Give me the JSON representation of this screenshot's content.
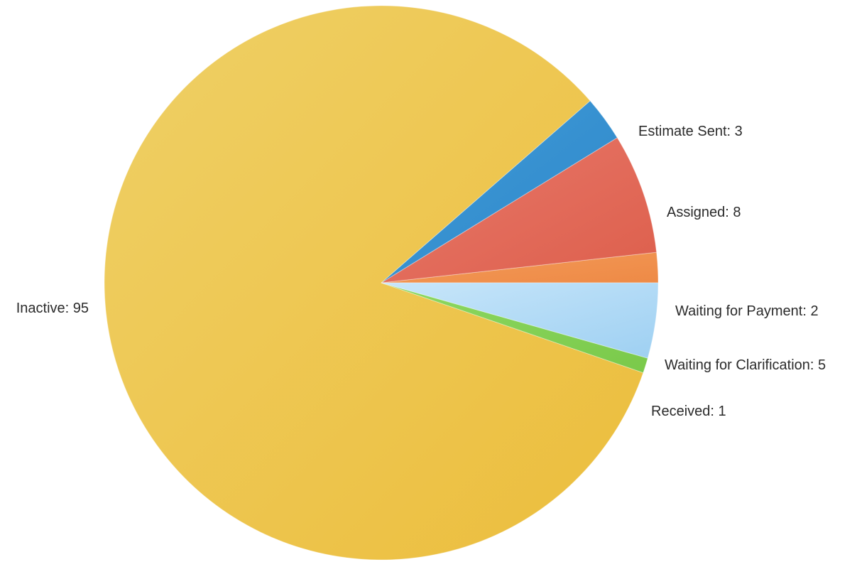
{
  "chart_data": {
    "type": "pie",
    "title": "",
    "legend": "none",
    "slices": [
      {
        "label": "Waiting for Payment",
        "value": 2,
        "text": "Waiting for Payment: 2",
        "color": "#EE8A46",
        "color_light": "#F39A58"
      },
      {
        "label": "Assigned",
        "value": 8,
        "text": "Assigned: 8",
        "color": "#DD5F4C",
        "color_light": "#E8786A"
      },
      {
        "label": "Estimate Sent",
        "value": 3,
        "text": "Estimate Sent: 3",
        "color": "#2F87C8",
        "color_light": "#3F9BD9"
      },
      {
        "label": "Inactive",
        "value": 95,
        "text": "Inactive: 95",
        "color": "#ECBD3C",
        "color_light": "#EFD066"
      },
      {
        "label": "Received",
        "value": 1,
        "text": "Received: 1",
        "color": "#7AC94A",
        "color_light": "#8DD862"
      },
      {
        "label": "Waiting for Clarification",
        "value": 5,
        "text": "Waiting for Clarification: 5",
        "color": "#9ED0F2",
        "color_light": "#C8E6FA"
      }
    ]
  }
}
